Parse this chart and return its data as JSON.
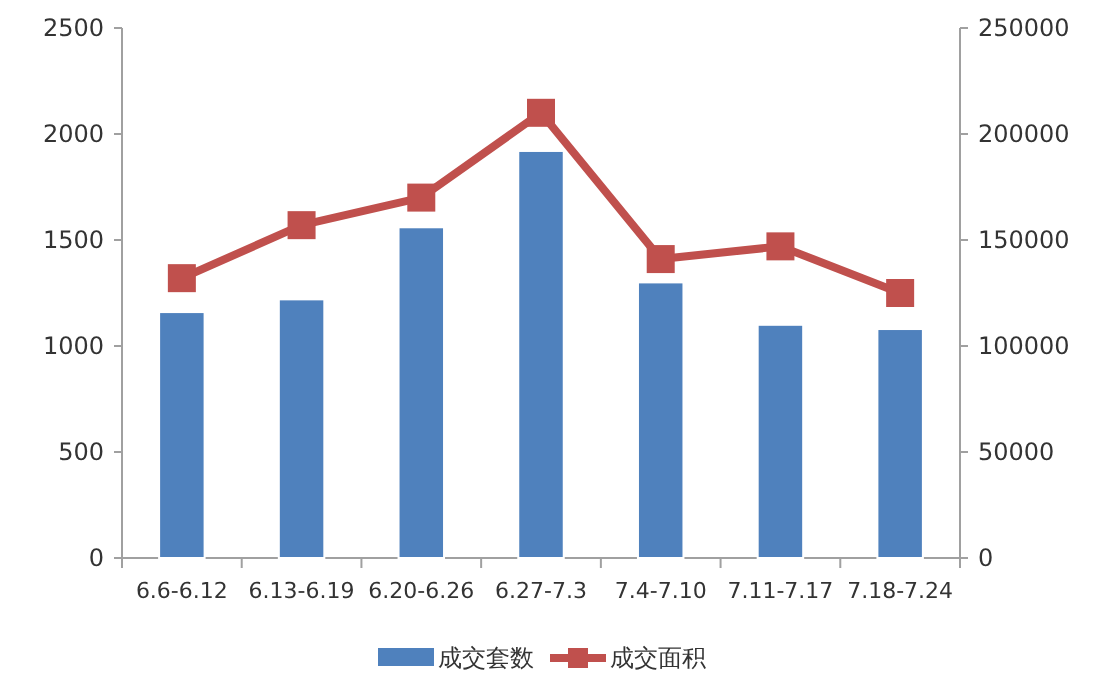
{
  "chart_data": {
    "type": "bar",
    "categories": [
      "6.6-6.12",
      "6.13-6.19",
      "6.20-6.26",
      "6.27-7.3",
      "7.4-7.10",
      "7.11-7.17",
      "7.18-7.24"
    ],
    "series": [
      {
        "name": "成交套数",
        "color": "#4f81bd",
        "values": [
          1160,
          1220,
          1560,
          1920,
          1300,
          1100,
          1080
        ]
      },
      {
        "name": "成交面积",
        "type": "line",
        "axis": "y2",
        "color": "#c0504d",
        "marker": "square",
        "values": [
          132000,
          157000,
          170000,
          210000,
          141000,
          147000,
          125000
        ]
      }
    ],
    "ylim": [
      0,
      2500
    ],
    "yticks": [
      0,
      500,
      1000,
      1500,
      2000,
      2500
    ],
    "y2lim": [
      0,
      250000
    ],
    "y2ticks": [
      0,
      50000,
      100000,
      150000,
      200000,
      250000
    ],
    "legend": "bottom"
  }
}
